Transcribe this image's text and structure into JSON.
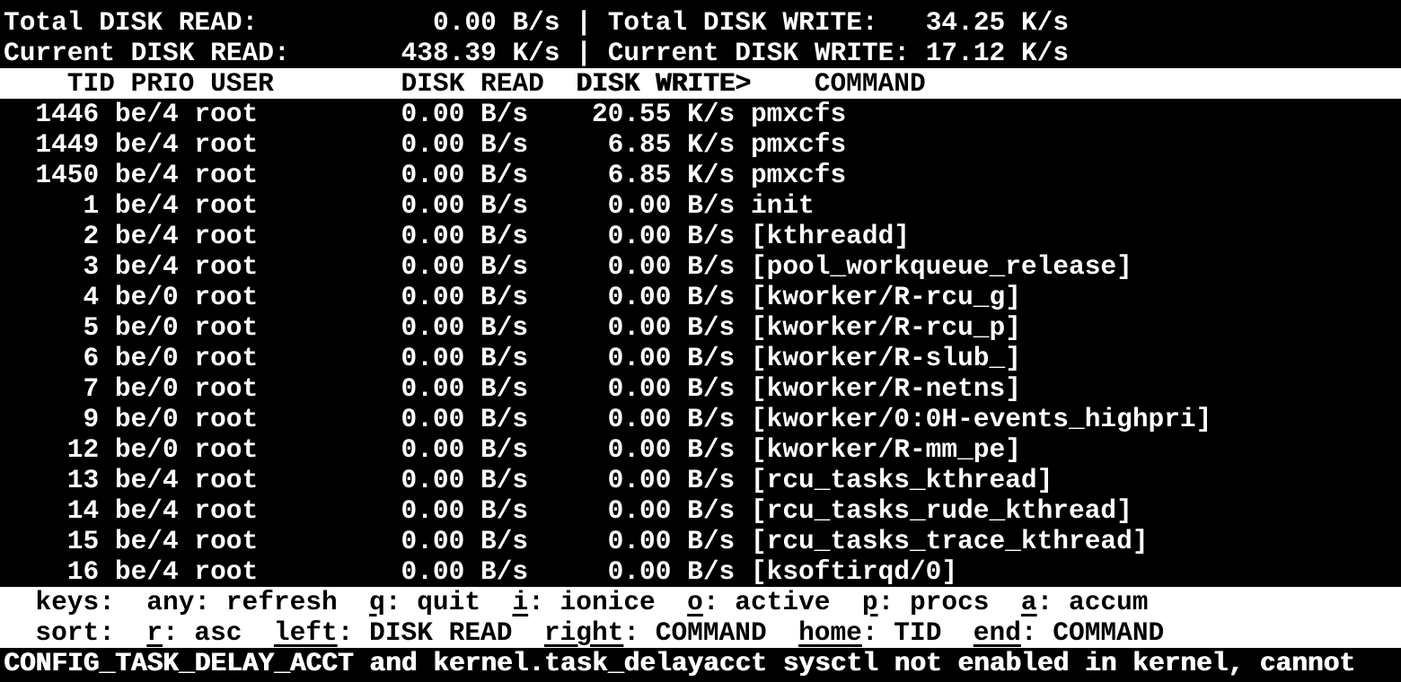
{
  "app_title": "iotop",
  "colors": {
    "background": "#000000",
    "foreground": "#ffffff",
    "band_background": "#ffffff",
    "band_foreground": "#000000"
  },
  "summary": {
    "line1": {
      "label_left": "Total DISK READ:",
      "value_left": "0.00 B/s",
      "separator": "|",
      "label_right": "Total DISK WRITE:",
      "value_right": "34.25 K/s"
    },
    "line2": {
      "label_left": "Current DISK READ:",
      "value_left": "438.39 K/s",
      "separator": "|",
      "label_right": "Current DISK WRITE:",
      "value_right": "17.12 K/s"
    }
  },
  "table": {
    "headers": {
      "tid": "TID",
      "prio": "PRIO",
      "user": "USER",
      "read": "DISK READ",
      "write": "DISK WRITE",
      "command": "COMMAND"
    },
    "sort_column": "write",
    "sort_indicator": ">",
    "rows": [
      {
        "tid": "1446",
        "prio": "be/4",
        "user": "root",
        "read": "0.00 B/s",
        "write": "20.55 K/s",
        "command": "pmxcfs"
      },
      {
        "tid": "1449",
        "prio": "be/4",
        "user": "root",
        "read": "0.00 B/s",
        "write": "6.85 K/s",
        "command": "pmxcfs"
      },
      {
        "tid": "1450",
        "prio": "be/4",
        "user": "root",
        "read": "0.00 B/s",
        "write": "6.85 K/s",
        "command": "pmxcfs"
      },
      {
        "tid": "1",
        "prio": "be/4",
        "user": "root",
        "read": "0.00 B/s",
        "write": "0.00 B/s",
        "command": "init"
      },
      {
        "tid": "2",
        "prio": "be/4",
        "user": "root",
        "read": "0.00 B/s",
        "write": "0.00 B/s",
        "command": "[kthreadd]"
      },
      {
        "tid": "3",
        "prio": "be/4",
        "user": "root",
        "read": "0.00 B/s",
        "write": "0.00 B/s",
        "command": "[pool_workqueue_release]"
      },
      {
        "tid": "4",
        "prio": "be/0",
        "user": "root",
        "read": "0.00 B/s",
        "write": "0.00 B/s",
        "command": "[kworker/R-rcu_g]"
      },
      {
        "tid": "5",
        "prio": "be/0",
        "user": "root",
        "read": "0.00 B/s",
        "write": "0.00 B/s",
        "command": "[kworker/R-rcu_p]"
      },
      {
        "tid": "6",
        "prio": "be/0",
        "user": "root",
        "read": "0.00 B/s",
        "write": "0.00 B/s",
        "command": "[kworker/R-slub_]"
      },
      {
        "tid": "7",
        "prio": "be/0",
        "user": "root",
        "read": "0.00 B/s",
        "write": "0.00 B/s",
        "command": "[kworker/R-netns]"
      },
      {
        "tid": "9",
        "prio": "be/0",
        "user": "root",
        "read": "0.00 B/s",
        "write": "0.00 B/s",
        "command": "[kworker/0:0H-events_highpri]"
      },
      {
        "tid": "12",
        "prio": "be/0",
        "user": "root",
        "read": "0.00 B/s",
        "write": "0.00 B/s",
        "command": "[kworker/R-mm_pe]"
      },
      {
        "tid": "13",
        "prio": "be/4",
        "user": "root",
        "read": "0.00 B/s",
        "write": "0.00 B/s",
        "command": "[rcu_tasks_kthread]"
      },
      {
        "tid": "14",
        "prio": "be/4",
        "user": "root",
        "read": "0.00 B/s",
        "write": "0.00 B/s",
        "command": "[rcu_tasks_rude_kthread]"
      },
      {
        "tid": "15",
        "prio": "be/4",
        "user": "root",
        "read": "0.00 B/s",
        "write": "0.00 B/s",
        "command": "[rcu_tasks_trace_kthread]"
      },
      {
        "tid": "16",
        "prio": "be/4",
        "user": "root",
        "read": "0.00 B/s",
        "write": "0.00 B/s",
        "command": "[ksoftirqd/0]"
      }
    ]
  },
  "help": {
    "separator": ":",
    "keys_line": {
      "label": "keys:",
      "items": [
        {
          "key": "any",
          "desc": "refresh",
          "underline": false
        },
        {
          "key": "q",
          "desc": "quit",
          "underline": true
        },
        {
          "key": "i",
          "desc": "ionice",
          "underline": true
        },
        {
          "key": "o",
          "desc": "active",
          "underline": true
        },
        {
          "key": "p",
          "desc": "procs",
          "underline": true
        },
        {
          "key": "a",
          "desc": "accum",
          "underline": true
        }
      ]
    },
    "sort_line": {
      "label": "sort:",
      "items": [
        {
          "key": "r",
          "desc": "asc",
          "underline": true
        },
        {
          "key": "left",
          "desc": "DISK READ",
          "underline": true
        },
        {
          "key": "right",
          "desc": "COMMAND",
          "underline": true
        },
        {
          "key": "home",
          "desc": "TID",
          "underline": true
        },
        {
          "key": "end",
          "desc": "COMMAND",
          "underline": true
        }
      ]
    }
  },
  "status_message": "CONFIG_TASK_DELAY_ACCT and kernel.task_delayacct sysctl not enabled in kernel, cannot"
}
